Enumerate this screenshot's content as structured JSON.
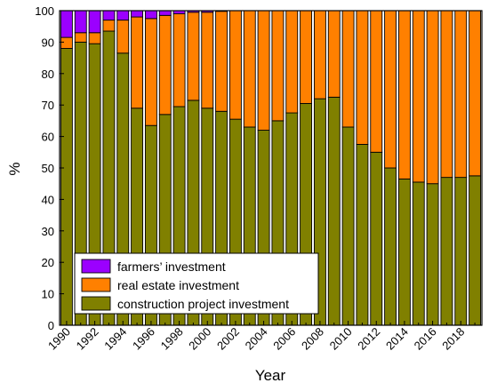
{
  "chart_data": {
    "type": "bar",
    "stacked": true,
    "title": "",
    "xlabel": "Year",
    "ylabel": "%",
    "ylim": [
      0,
      100
    ],
    "y_ticks": [
      0,
      10,
      20,
      30,
      40,
      50,
      60,
      70,
      80,
      90,
      100
    ],
    "grid": false,
    "legend_position": "bottom-left",
    "categories": [
      "1990",
      "1991",
      "1992",
      "1993",
      "1994",
      "1995",
      "1996",
      "1997",
      "1998",
      "1999",
      "2000",
      "2001",
      "2002",
      "2003",
      "2004",
      "2005",
      "2006",
      "2007",
      "2008",
      "2009",
      "2010",
      "2011",
      "2012",
      "2013",
      "2014",
      "2015",
      "2016",
      "2017",
      "2018",
      "2019"
    ],
    "x_tick_labels": [
      "1990",
      "1992",
      "1994",
      "1996",
      "1998",
      "2000",
      "2002",
      "2004",
      "2006",
      "2008",
      "2010",
      "2012",
      "2014",
      "2016",
      "2018"
    ],
    "series": [
      {
        "name": "construction project investment",
        "color": "#808000",
        "values": [
          88,
          90,
          89.5,
          93.5,
          86.5,
          69,
          63.5,
          67,
          69.5,
          71.5,
          69,
          68,
          65.5,
          63,
          62,
          65,
          67.5,
          70.5,
          72,
          72.5,
          63,
          57.5,
          55,
          50,
          46.5,
          45.5,
          45,
          47,
          47,
          47.5
        ]
      },
      {
        "name": "real estate investment",
        "color": "#ff8000",
        "values": [
          3.5,
          3,
          3.5,
          3.5,
          10.5,
          29,
          34,
          31.5,
          29.5,
          28,
          30.5,
          31.8,
          34.5,
          37,
          38,
          35,
          32.5,
          29.5,
          28,
          27.5,
          37,
          42.5,
          45,
          50,
          53.5,
          54.5,
          55,
          53,
          53,
          52.5
        ]
      },
      {
        "name": "farmers’ investment",
        "color": "#9b00ff",
        "values": [
          8.5,
          7,
          7,
          3,
          3,
          2,
          2.5,
          1.5,
          1,
          0.5,
          0.5,
          0.2,
          0,
          0,
          0,
          0,
          0,
          0,
          0,
          0,
          0,
          0,
          0,
          0,
          0,
          0,
          0,
          0,
          0,
          0
        ]
      }
    ],
    "legend_order": [
      "farmers’ investment",
      "real estate investment",
      "construction project investment"
    ]
  }
}
